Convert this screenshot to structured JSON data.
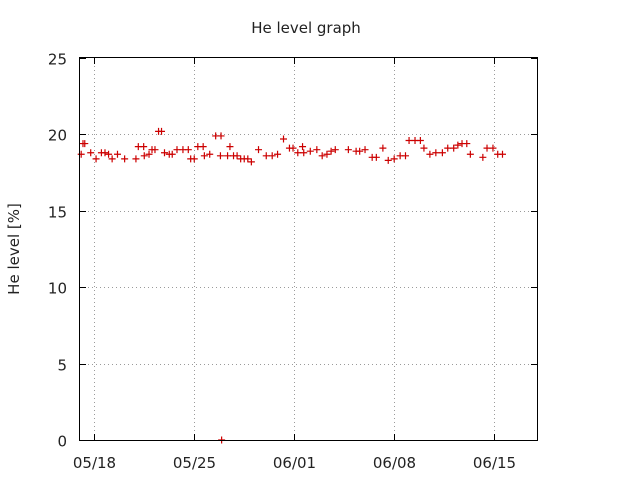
{
  "chart_data": {
    "type": "scatter",
    "title": "He level graph",
    "xlabel": "",
    "ylabel": "He level [%]",
    "ylim": [
      0,
      25
    ],
    "yticks": [
      0,
      5,
      10,
      15,
      20,
      25
    ],
    "xlim": [
      "2017-05-17",
      "2017-06-18"
    ],
    "xticks": [
      {
        "date": "2017-05-18",
        "label": "05/18"
      },
      {
        "date": "2017-05-25",
        "label": "05/25"
      },
      {
        "date": "2017-06-01",
        "label": "06/01"
      },
      {
        "date": "2017-06-08",
        "label": "06/08"
      },
      {
        "date": "2017-06-15",
        "label": "06/15"
      }
    ],
    "grid": true,
    "marker": "+",
    "color": "#cc0000",
    "series": [
      {
        "name": "",
        "points": [
          [
            "2017-05-17T02:00",
            18.7
          ],
          [
            "2017-05-17T05:00",
            19.4
          ],
          [
            "2017-05-17T08:00",
            19.4
          ],
          [
            "2017-05-17T18:00",
            18.8
          ],
          [
            "2017-05-18T03:00",
            18.4
          ],
          [
            "2017-05-18T12:00",
            18.8
          ],
          [
            "2017-05-18T18:00",
            18.8
          ],
          [
            "2017-05-19T00:00",
            18.7
          ],
          [
            "2017-05-19T06:00",
            18.4
          ],
          [
            "2017-05-19T15:00",
            18.7
          ],
          [
            "2017-05-20T03:00",
            18.4
          ],
          [
            "2017-05-20T22:00",
            18.4
          ],
          [
            "2017-05-21T02:00",
            19.2
          ],
          [
            "2017-05-21T11:00",
            19.2
          ],
          [
            "2017-05-21T12:00",
            18.6
          ],
          [
            "2017-05-21T20:00",
            18.7
          ],
          [
            "2017-05-22T01:00",
            19.0
          ],
          [
            "2017-05-22T06:00",
            19.0
          ],
          [
            "2017-05-22T12:00",
            20.2
          ],
          [
            "2017-05-22T17:00",
            20.2
          ],
          [
            "2017-05-22T22:00",
            18.8
          ],
          [
            "2017-05-23T06:00",
            18.7
          ],
          [
            "2017-05-23T11:00",
            18.7
          ],
          [
            "2017-05-23T19:00",
            19.0
          ],
          [
            "2017-05-24T05:00",
            19.0
          ],
          [
            "2017-05-24T14:00",
            19.0
          ],
          [
            "2017-05-24T18:00",
            18.4
          ],
          [
            "2017-05-25T00:00",
            18.4
          ],
          [
            "2017-05-25T06:00",
            19.2
          ],
          [
            "2017-05-25T15:00",
            19.2
          ],
          [
            "2017-05-25T17:00",
            18.6
          ],
          [
            "2017-05-26T02:00",
            18.7
          ],
          [
            "2017-05-26T12:00",
            19.9
          ],
          [
            "2017-05-26T21:00",
            19.9
          ],
          [
            "2017-05-26T20:00",
            18.6
          ],
          [
            "2017-05-26T22:00",
            0.0
          ],
          [
            "2017-05-27T08:00",
            18.6
          ],
          [
            "2017-05-27T12:00",
            19.2
          ],
          [
            "2017-05-27T18:00",
            18.6
          ],
          [
            "2017-05-28T00:00",
            18.6
          ],
          [
            "2017-05-28T06:00",
            18.4
          ],
          [
            "2017-05-28T12:00",
            18.4
          ],
          [
            "2017-05-28T18:00",
            18.4
          ],
          [
            "2017-05-29T00:00",
            18.2
          ],
          [
            "2017-05-29T12:00",
            19.0
          ],
          [
            "2017-05-30T01:00",
            18.6
          ],
          [
            "2017-05-30T11:00",
            18.6
          ],
          [
            "2017-05-30T20:00",
            18.7
          ],
          [
            "2017-05-31T06:00",
            19.7
          ],
          [
            "2017-05-31T16:00",
            19.1
          ],
          [
            "2017-05-31T22:00",
            19.1
          ],
          [
            "2017-06-01T06:00",
            18.8
          ],
          [
            "2017-06-01T14:00",
            19.2
          ],
          [
            "2017-06-01T16:00",
            18.8
          ],
          [
            "2017-06-02T03:00",
            18.9
          ],
          [
            "2017-06-02T14:00",
            19.0
          ],
          [
            "2017-06-02T23:00",
            18.6
          ],
          [
            "2017-06-03T07:00",
            18.7
          ],
          [
            "2017-06-03T14:00",
            18.9
          ],
          [
            "2017-06-03T21:00",
            19.0
          ],
          [
            "2017-06-04T19:00",
            19.0
          ],
          [
            "2017-06-05T08:00",
            18.9
          ],
          [
            "2017-06-05T14:00",
            18.9
          ],
          [
            "2017-06-05T23:00",
            19.0
          ],
          [
            "2017-06-06T11:00",
            18.5
          ],
          [
            "2017-06-06T18:00",
            18.5
          ],
          [
            "2017-06-07T05:00",
            19.1
          ],
          [
            "2017-06-07T14:00",
            18.3
          ],
          [
            "2017-06-08T00:00",
            18.4
          ],
          [
            "2017-06-08T10:00",
            18.6
          ],
          [
            "2017-06-08T19:00",
            18.6
          ],
          [
            "2017-06-09T01:00",
            19.6
          ],
          [
            "2017-06-09T11:00",
            19.6
          ],
          [
            "2017-06-09T20:00",
            19.6
          ],
          [
            "2017-06-10T02:00",
            19.1
          ],
          [
            "2017-06-10T12:00",
            18.7
          ],
          [
            "2017-06-10T22:00",
            18.8
          ],
          [
            "2017-06-11T09:00",
            18.8
          ],
          [
            "2017-06-11T18:00",
            19.1
          ],
          [
            "2017-06-12T04:00",
            19.1
          ],
          [
            "2017-06-12T11:00",
            19.3
          ],
          [
            "2017-06-12T18:00",
            19.4
          ],
          [
            "2017-06-13T02:00",
            19.4
          ],
          [
            "2017-06-13T08:00",
            18.7
          ],
          [
            "2017-06-14T05:00",
            18.5
          ],
          [
            "2017-06-14T12:00",
            19.1
          ],
          [
            "2017-06-14T22:00",
            19.1
          ],
          [
            "2017-06-15T06:00",
            18.7
          ],
          [
            "2017-06-15T14:00",
            18.7
          ]
        ]
      }
    ]
  }
}
